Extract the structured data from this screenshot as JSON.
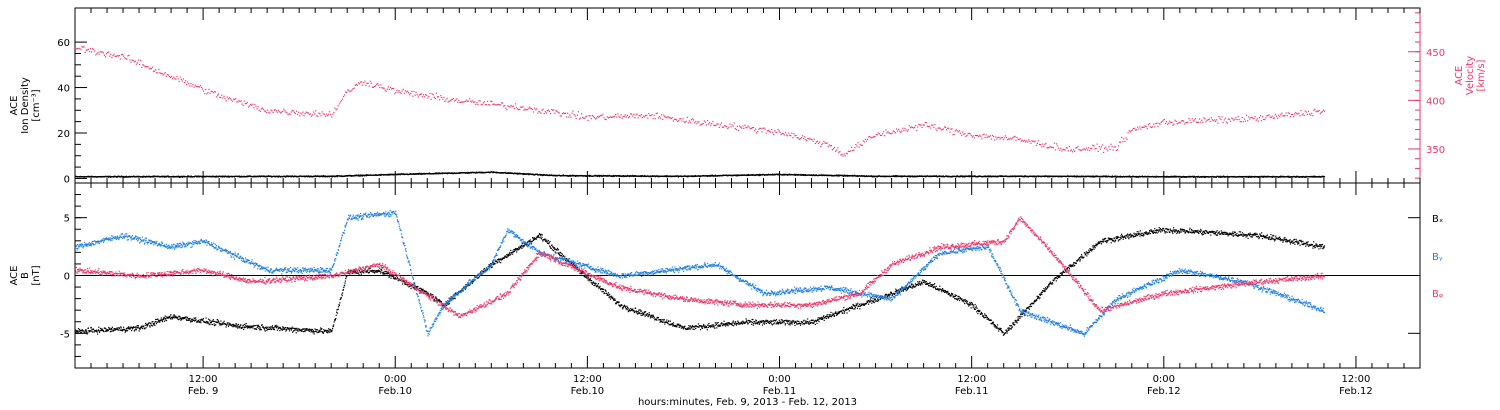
{
  "figure": {
    "xlabel": "hours:minutes, Feb.  9, 2013 - Feb. 12, 2013",
    "x_ticks": [
      {
        "time": "12:00",
        "date": "Feb. 9"
      },
      {
        "time": "0:00",
        "date": "Feb.10"
      },
      {
        "time": "12:00",
        "date": "Feb.10"
      },
      {
        "time": "0:00",
        "date": "Feb.11"
      },
      {
        "time": "12:00",
        "date": "Feb.11"
      },
      {
        "time": "0:00",
        "date": "Feb.12"
      },
      {
        "time": "12:00",
        "date": "Feb.12"
      }
    ]
  },
  "colors": {
    "black": "#000000",
    "blue": "#1f7fe0",
    "red": "#e8386a",
    "frame": "#000000"
  },
  "chart_data": [
    {
      "type": "scatter",
      "ylabel_lines": [
        "ACE",
        "Ion Density",
        "[cm⁻³]"
      ],
      "y2label_lines": [
        "ACE",
        "Velocity",
        "[km/s]"
      ],
      "xlim": [
        "2013-02-09 04:00",
        "2013-02-12 16:00"
      ],
      "ylim": [
        -2,
        75
      ],
      "y2lim": [
        315,
        495
      ],
      "y_ticks": [
        0,
        20,
        40,
        60
      ],
      "y2_ticks": [
        350,
        400,
        450
      ],
      "series": [
        {
          "color": "black",
          "axis": "left",
          "points": [
            [
              "2013-02-09 04:00",
              1.0
            ],
            [
              "2013-02-09 20:00",
              1.2
            ],
            [
              "2013-02-10 00:00",
              2.0
            ],
            [
              "2013-02-10 06:00",
              3.0
            ],
            [
              "2013-02-10 10:00",
              1.5
            ],
            [
              "2013-02-10 18:00",
              1.2
            ],
            [
              "2013-02-11 00:00",
              2.0
            ],
            [
              "2013-02-11 06:00",
              1.2
            ],
            [
              "2013-02-11 16:00",
              1.2
            ],
            [
              "2013-02-12 00:00",
              1.0
            ],
            [
              "2013-02-12 06:00",
              1.0
            ]
          ]
        },
        {
          "color": "red",
          "axis": "right",
          "points": [
            [
              "2013-02-09 04:00",
              455
            ],
            [
              "2013-02-09 07:00",
              445
            ],
            [
              "2013-02-09 10:00",
              425
            ],
            [
              "2013-02-09 13:00",
              405
            ],
            [
              "2013-02-09 16:00",
              390
            ],
            [
              "2013-02-09 20:00",
              386
            ],
            [
              "2013-02-09 21:00",
              410
            ],
            [
              "2013-02-09 22:00",
              420
            ],
            [
              "2013-02-10 00:00",
              410
            ],
            [
              "2013-02-10 04:00",
              400
            ],
            [
              "2013-02-10 08:00",
              393
            ],
            [
              "2013-02-10 12:00",
              383
            ],
            [
              "2013-02-10 16:00",
              385
            ],
            [
              "2013-02-10 18:00",
              380
            ],
            [
              "2013-02-11 00:00",
              368
            ],
            [
              "2013-02-11 03:00",
              355
            ],
            [
              "2013-02-11 04:00",
              345
            ],
            [
              "2013-02-11 06:00",
              365
            ],
            [
              "2013-02-11 09:00",
              375
            ],
            [
              "2013-02-11 12:00",
              365
            ],
            [
              "2013-02-11 15:00",
              360
            ],
            [
              "2013-02-11 18:00",
              350
            ],
            [
              "2013-02-11 21:00",
              352
            ],
            [
              "2013-02-11 22:00",
              370
            ],
            [
              "2013-02-12 00:00",
              378
            ],
            [
              "2013-02-12 03:00",
              380
            ],
            [
              "2013-02-12 06:00",
              382
            ],
            [
              "2013-02-12 10:00",
              390
            ]
          ]
        }
      ]
    },
    {
      "type": "scatter",
      "ylabel_lines": [
        "ACE",
        "B",
        "[nT]"
      ],
      "xlim": [
        "2013-02-09 04:00",
        "2013-02-12 16:00"
      ],
      "ylim": [
        -8,
        8
      ],
      "y_ticks": [
        -5,
        0,
        5
      ],
      "zero_line": true,
      "legend": [
        "Bₓ",
        "Bᵧ",
        "Bᵩ"
      ],
      "legend_placement": "right",
      "series": [
        {
          "color": "black",
          "points": [
            [
              "2013-02-09 04:00",
              -4.8
            ],
            [
              "2013-02-09 08:00",
              -4.5
            ],
            [
              "2013-02-09 10:00",
              -3.5
            ],
            [
              "2013-02-09 14:00",
              -4.3
            ],
            [
              "2013-02-09 20:00",
              -4.8
            ],
            [
              "2013-02-09 21:00",
              0.3
            ],
            [
              "2013-02-09 23:00",
              0.5
            ],
            [
              "2013-02-10 02:00",
              -1.5
            ],
            [
              "2013-02-10 03:00",
              -2.5
            ],
            [
              "2013-02-10 06:00",
              1.0
            ],
            [
              "2013-02-10 09:00",
              3.5
            ],
            [
              "2013-02-10 11:00",
              1.0
            ],
            [
              "2013-02-10 14:00",
              -2.5
            ],
            [
              "2013-02-10 18:00",
              -4.5
            ],
            [
              "2013-02-10 22:00",
              -4.0
            ],
            [
              "2013-02-11 02:00",
              -4.0
            ],
            [
              "2013-02-11 06:00",
              -2.0
            ],
            [
              "2013-02-11 09:00",
              -0.5
            ],
            [
              "2013-02-11 12:00",
              -2.5
            ],
            [
              "2013-02-11 14:00",
              -5.0
            ],
            [
              "2013-02-11 17:00",
              -0.5
            ],
            [
              "2013-02-11 20:00",
              3.0
            ],
            [
              "2013-02-12 00:00",
              4.0
            ],
            [
              "2013-02-12 06:00",
              3.5
            ],
            [
              "2013-02-12 10:00",
              2.5
            ]
          ]
        },
        {
          "color": "blue",
          "points": [
            [
              "2013-02-09 04:00",
              2.5
            ],
            [
              "2013-02-09 07:00",
              3.5
            ],
            [
              "2013-02-09 10:00",
              2.5
            ],
            [
              "2013-02-09 12:00",
              3.0
            ],
            [
              "2013-02-09 16:00",
              0.5
            ],
            [
              "2013-02-09 20:00",
              0.5
            ],
            [
              "2013-02-09 21:00",
              5.0
            ],
            [
              "2013-02-10 00:00",
              5.5
            ],
            [
              "2013-02-10 02:00",
              -5.0
            ],
            [
              "2013-02-10 03:00",
              -2.5
            ],
            [
              "2013-02-10 06:00",
              1.0
            ],
            [
              "2013-02-10 07:00",
              4.0
            ],
            [
              "2013-02-10 09:00",
              2.0
            ],
            [
              "2013-02-10 14:00",
              0.0
            ],
            [
              "2013-02-10 20:00",
              1.0
            ],
            [
              "2013-02-10 23:00",
              -1.5
            ],
            [
              "2013-02-11 03:00",
              -1.0
            ],
            [
              "2013-02-11 07:00",
              -2.0
            ],
            [
              "2013-02-11 10:00",
              2.0
            ],
            [
              "2013-02-11 13:00",
              2.5
            ],
            [
              "2013-02-11 15:00",
              -3.0
            ],
            [
              "2013-02-11 19:00",
              -5.0
            ],
            [
              "2013-02-11 21:00",
              -2.0
            ],
            [
              "2013-02-12 01:00",
              0.5
            ],
            [
              "2013-02-12 05:00",
              -0.5
            ],
            [
              "2013-02-12 10:00",
              -3.0
            ]
          ]
        },
        {
          "color": "red",
          "points": [
            [
              "2013-02-09 04:00",
              0.5
            ],
            [
              "2013-02-09 08:00",
              0.0
            ],
            [
              "2013-02-09 12:00",
              0.5
            ],
            [
              "2013-02-09 15:00",
              -0.5
            ],
            [
              "2013-02-09 20:00",
              0.0
            ],
            [
              "2013-02-09 23:00",
              1.0
            ],
            [
              "2013-02-10 04:00",
              -3.5
            ],
            [
              "2013-02-10 07:00",
              -1.5
            ],
            [
              "2013-02-10 09:00",
              2.0
            ],
            [
              "2013-02-10 14:00",
              -1.0
            ],
            [
              "2013-02-10 18:00",
              -2.0
            ],
            [
              "2013-02-10 22:00",
              -2.5
            ],
            [
              "2013-02-11 02:00",
              -2.5
            ],
            [
              "2013-02-11 05:00",
              -1.5
            ],
            [
              "2013-02-11 07:00",
              1.0
            ],
            [
              "2013-02-11 10:00",
              2.5
            ],
            [
              "2013-02-11 14:00",
              3.0
            ],
            [
              "2013-02-11 15:00",
              5.0
            ],
            [
              "2013-02-11 17:00",
              2.0
            ],
            [
              "2013-02-11 20:00",
              -3.0
            ],
            [
              "2013-02-12 00:00",
              -1.5
            ],
            [
              "2013-02-12 06:00",
              -0.5
            ],
            [
              "2013-02-12 10:00",
              0.0
            ]
          ]
        }
      ]
    }
  ]
}
